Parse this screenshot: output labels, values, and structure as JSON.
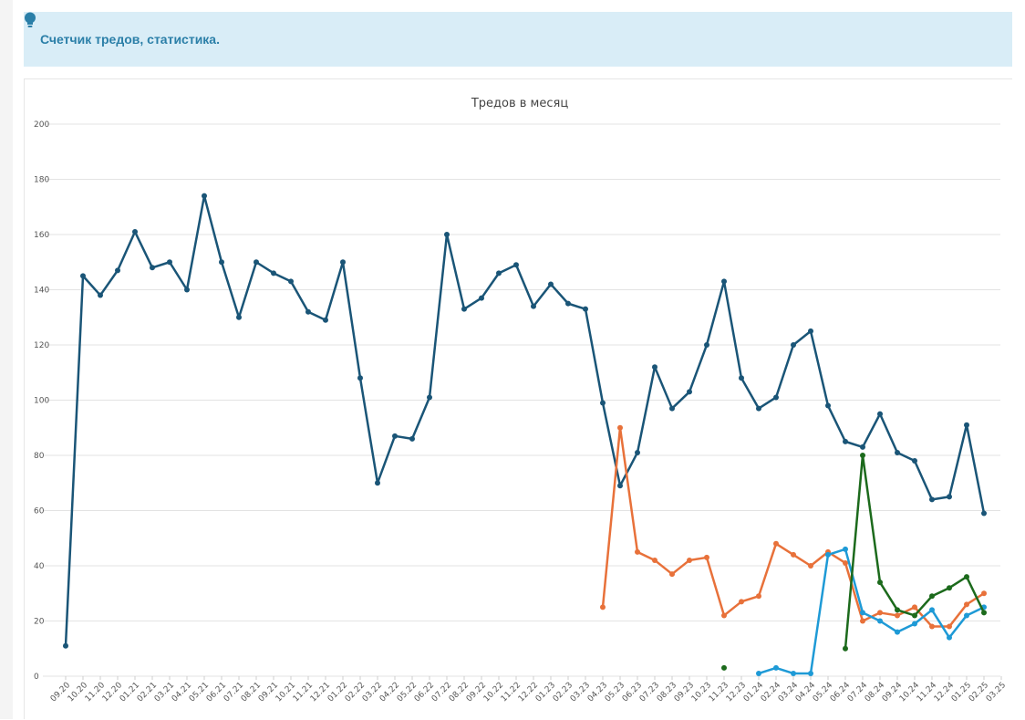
{
  "notice": {
    "icon": "lightbulb-icon",
    "text": "Счетчик тредов, статистика.",
    "color": "#2b7fa8",
    "background": "#d9edf7"
  },
  "chart_data": {
    "type": "line",
    "title": "Тредов в месяц",
    "xlabel": "",
    "ylabel": "",
    "ylim": [
      0,
      200
    ],
    "yticks": [
      0,
      20,
      40,
      60,
      80,
      100,
      120,
      140,
      160,
      180,
      200
    ],
    "grid": true,
    "legend": "none",
    "categories": [
      "09.20",
      "10.20",
      "11.20",
      "12.20",
      "01.21",
      "02.21",
      "03.21",
      "04.21",
      "05.21",
      "06.21",
      "07.21",
      "08.21",
      "09.21",
      "10.21",
      "11.21",
      "12.21",
      "01.22",
      "02.22",
      "03.22",
      "04.22",
      "05.22",
      "06.22",
      "07.22",
      "08.22",
      "09.22",
      "10.22",
      "11.22",
      "12.22",
      "01.23",
      "02.23",
      "03.23",
      "04.23",
      "05.23",
      "06.23",
      "07.23",
      "08.23",
      "09.23",
      "10.23",
      "11.23",
      "12.23",
      "01.24",
      "02.24",
      "03.24",
      "04.24",
      "05.24",
      "06.24",
      "07.24",
      "08.24",
      "09.24",
      "10.24",
      "11.24",
      "12.24",
      "01.25",
      "02.25",
      "03.25"
    ],
    "series": [
      {
        "color": "#1a5577",
        "values": [
          11,
          145,
          138,
          147,
          161,
          148,
          150,
          140,
          174,
          150,
          130,
          150,
          146,
          143,
          132,
          129,
          150,
          108,
          70,
          87,
          86,
          101,
          160,
          133,
          137,
          146,
          149,
          134,
          142,
          135,
          133,
          99,
          69,
          81,
          112,
          97,
          103,
          120,
          143,
          108,
          97,
          101,
          120,
          125,
          98,
          85,
          83,
          95,
          81,
          78,
          64,
          65,
          91,
          59,
          null
        ]
      },
      {
        "color": "#e8713a",
        "values": [
          null,
          null,
          null,
          null,
          null,
          null,
          null,
          null,
          null,
          null,
          null,
          null,
          null,
          null,
          null,
          null,
          null,
          null,
          null,
          null,
          null,
          null,
          null,
          null,
          null,
          null,
          null,
          null,
          null,
          null,
          null,
          25,
          90,
          45,
          42,
          37,
          42,
          43,
          22,
          27,
          29,
          48,
          44,
          40,
          45,
          41,
          20,
          23,
          22,
          25,
          18,
          18,
          26,
          30,
          null
        ]
      },
      {
        "color": "#1e9ad6",
        "values": [
          null,
          null,
          null,
          null,
          null,
          null,
          null,
          null,
          null,
          null,
          null,
          null,
          null,
          null,
          null,
          null,
          null,
          null,
          null,
          null,
          null,
          null,
          null,
          null,
          null,
          null,
          null,
          null,
          null,
          null,
          null,
          null,
          null,
          null,
          null,
          null,
          null,
          null,
          null,
          null,
          1,
          3,
          1,
          1,
          44,
          46,
          23,
          20,
          16,
          19,
          24,
          14,
          22,
          25,
          null
        ]
      },
      {
        "color": "#1c6a1c",
        "values": [
          null,
          null,
          null,
          null,
          null,
          null,
          null,
          null,
          null,
          null,
          null,
          null,
          null,
          null,
          null,
          null,
          null,
          null,
          null,
          null,
          null,
          null,
          null,
          null,
          null,
          null,
          null,
          null,
          null,
          null,
          null,
          null,
          null,
          null,
          null,
          null,
          null,
          null,
          3,
          null,
          null,
          null,
          null,
          null,
          null,
          10,
          80,
          34,
          24,
          22,
          29,
          32,
          36,
          23,
          null
        ]
      }
    ]
  }
}
